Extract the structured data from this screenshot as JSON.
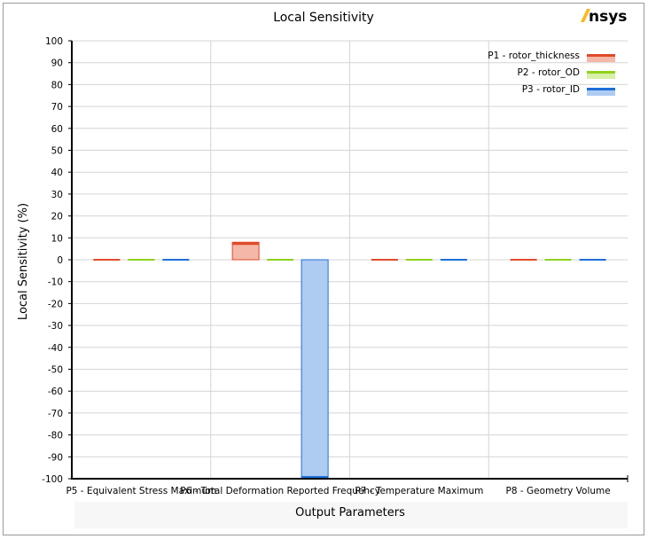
{
  "brand": {
    "name": "nsys",
    "mark_color": "#ffb71b"
  },
  "chart_data": {
    "type": "bar",
    "title": "Local Sensitivity",
    "xlabel": "Output Parameters",
    "ylabel": "Local Sensitivity (%)",
    "ylim": [
      -100,
      100
    ],
    "ytick_step": 10,
    "grid": true,
    "legend_position": "top-right",
    "categories": [
      "P5 - Equivalent Stress Maximum",
      "P6 - Total Deformation Reported Frequency",
      "P7 - Temperature Maximum",
      "P8 - Geometry Volume"
    ],
    "series": [
      {
        "name": "P1 - rotor_thickness",
        "values": [
          0,
          8,
          0,
          0
        ],
        "color": "#e04a2a",
        "fill": "#f4b8a8"
      },
      {
        "name": "P2 - rotor_OD",
        "values": [
          0,
          0,
          0,
          0
        ],
        "color": "#8fd21d",
        "fill": "#d8f0a8"
      },
      {
        "name": "P3 - rotor_ID",
        "values": [
          0,
          -100,
          0,
          0
        ],
        "color": "#1e6fd8",
        "fill": "#aecbf2"
      }
    ]
  }
}
